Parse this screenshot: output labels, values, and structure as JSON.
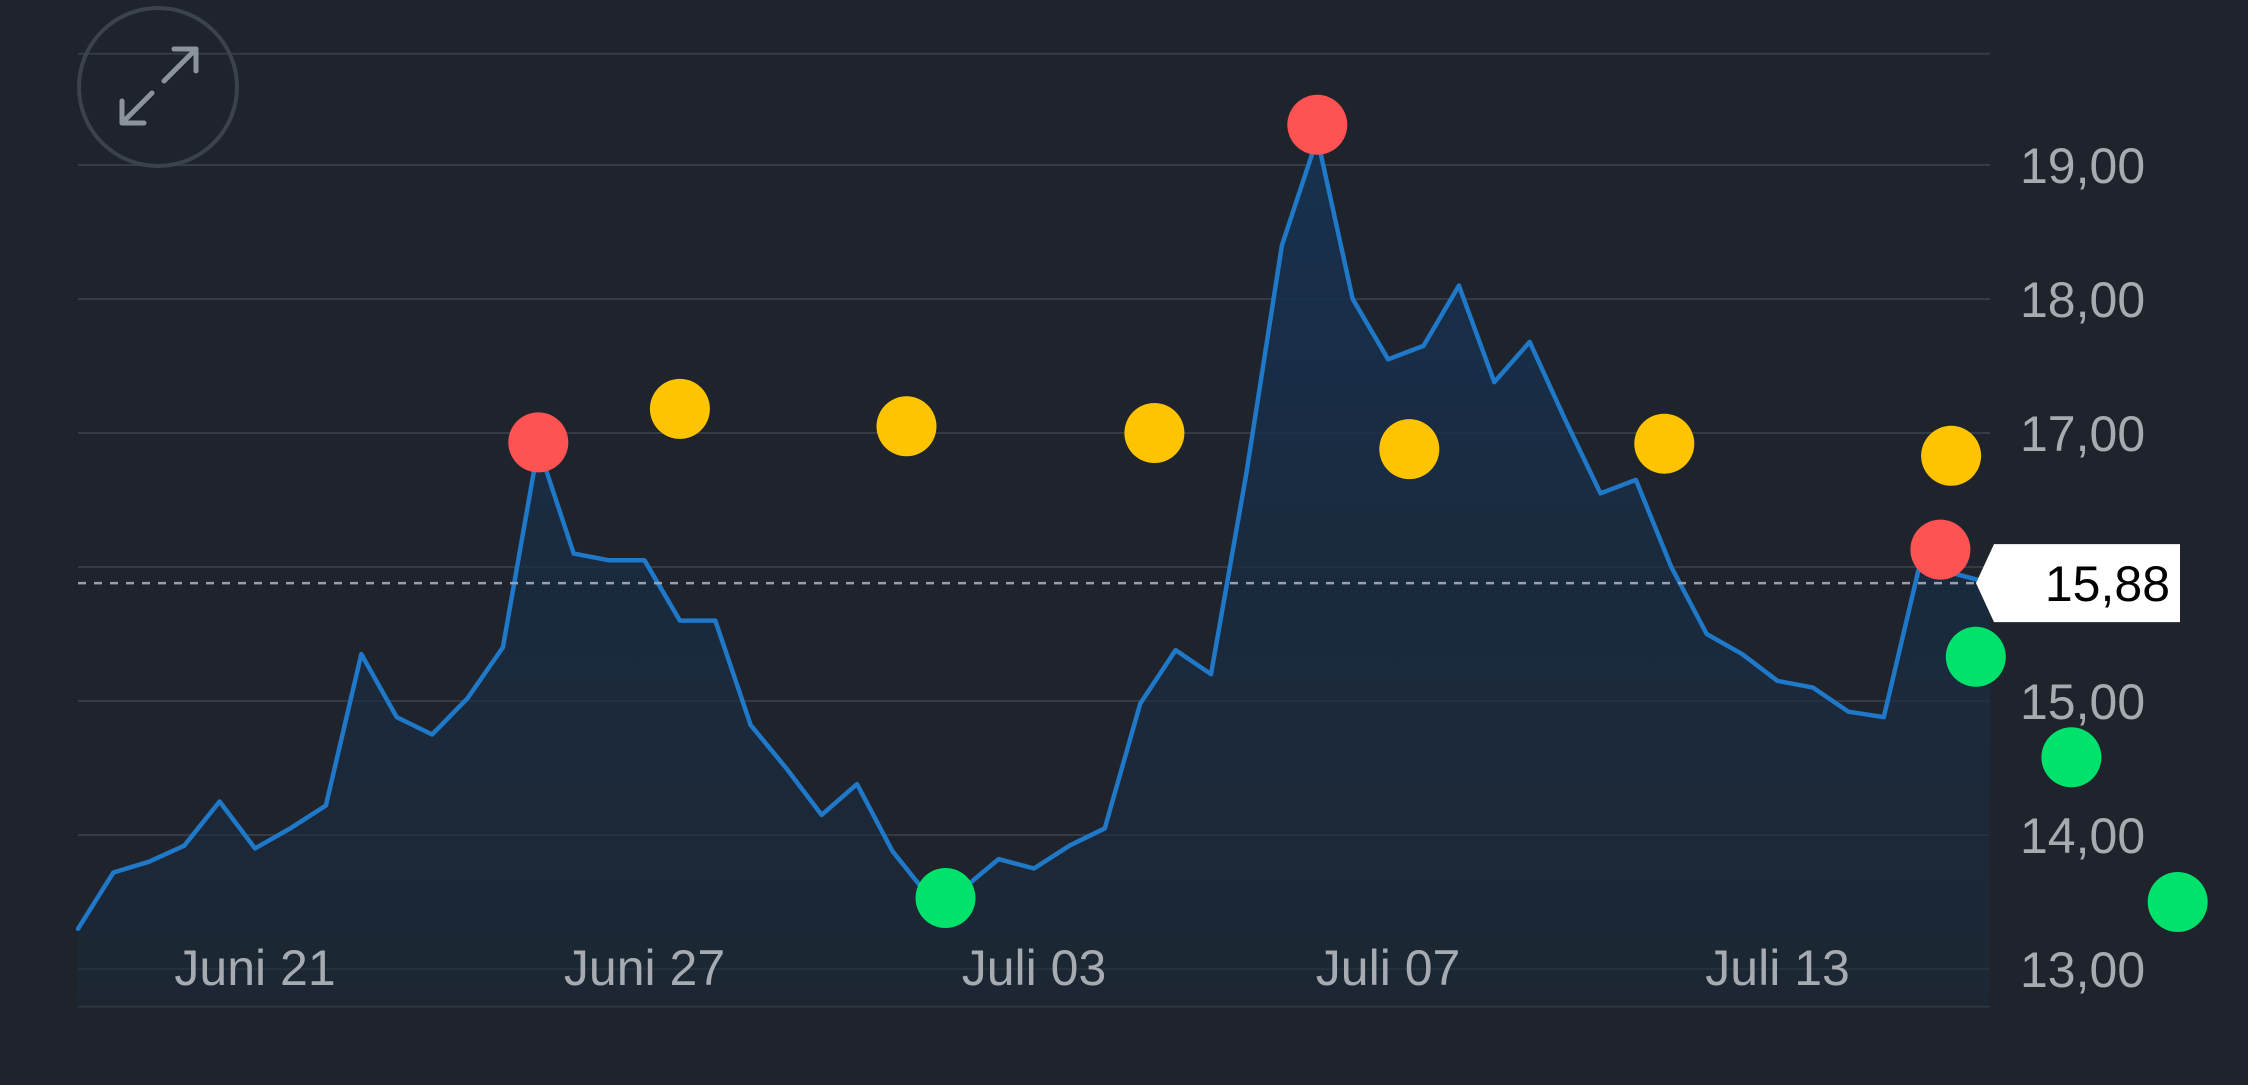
{
  "chart_data": {
    "type": "line",
    "title": "",
    "xlabel": "",
    "ylabel": "",
    "ylim": [
      12.7,
      19.8
    ],
    "grid": true,
    "y_ticks": [
      13,
      14,
      15,
      17,
      18,
      19
    ],
    "y_tick_labels": [
      "13,00",
      "14,00",
      "15,00",
      "17,00",
      "18,00",
      "19,00"
    ],
    "x_tick_labels": [
      {
        "index": 5,
        "label": "Juni 21"
      },
      {
        "index": 16,
        "label": "Juni 27"
      },
      {
        "index": 27,
        "label": "Juli 03"
      },
      {
        "index": 37,
        "label": "Juli 07"
      },
      {
        "index": 48,
        "label": "Juli 13"
      }
    ],
    "series": [
      {
        "values": [
          13.3,
          13.72,
          13.8,
          13.92,
          14.25,
          13.9,
          14.05,
          14.22,
          15.35,
          14.88,
          14.75,
          15.02,
          15.4,
          16.9,
          16.1,
          16.05,
          16.05,
          15.6,
          15.6,
          14.82,
          14.5,
          14.15,
          14.38,
          13.88,
          13.55,
          13.6,
          13.82,
          13.75,
          13.92,
          14.05,
          14.98,
          15.38,
          15.2,
          16.7,
          18.4,
          19.2,
          18.0,
          17.55,
          17.65,
          18.1,
          17.38,
          17.68,
          17.1,
          16.55,
          16.65,
          16.0,
          15.5,
          15.35,
          15.15,
          15.1,
          14.92,
          14.88,
          16.0,
          15.95,
          15.88
        ]
      }
    ],
    "current_price": 15.88,
    "current_price_label": "15,88",
    "markers": [
      {
        "color": "red",
        "index": 13,
        "value": 16.93
      },
      {
        "color": "red",
        "index": 35,
        "value": 19.3
      },
      {
        "color": "red",
        "index": 52.6,
        "value": 16.13
      },
      {
        "color": "yellow",
        "index": 17,
        "value": 17.18
      },
      {
        "color": "yellow",
        "index": 23.4,
        "value": 17.05
      },
      {
        "color": "yellow",
        "index": 30.4,
        "value": 17.0
      },
      {
        "color": "yellow",
        "index": 37.6,
        "value": 16.88
      },
      {
        "color": "yellow",
        "index": 44.8,
        "value": 16.92
      },
      {
        "color": "yellow",
        "index": 52.9,
        "value": 16.83
      },
      {
        "color": "green",
        "index": 24.5,
        "value": 13.53
      },
      {
        "color": "green",
        "index": 53.6,
        "value": 15.33
      },
      {
        "color": "green",
        "index": 56.3,
        "value": 14.58
      },
      {
        "color": "green",
        "index": 59.3,
        "value": 13.5
      }
    ],
    "colors": {
      "line": "#1f78c8",
      "fill": "#17324b",
      "grid": "#353b44",
      "axis_text": "#a6abb2",
      "price_label_bg": "#ffffff",
      "marker_red": "#ff5253",
      "marker_yellow": "#ffc400",
      "marker_green": "#00e26c"
    }
  },
  "controls": {
    "expand_icon": "expand-arrows-icon"
  }
}
